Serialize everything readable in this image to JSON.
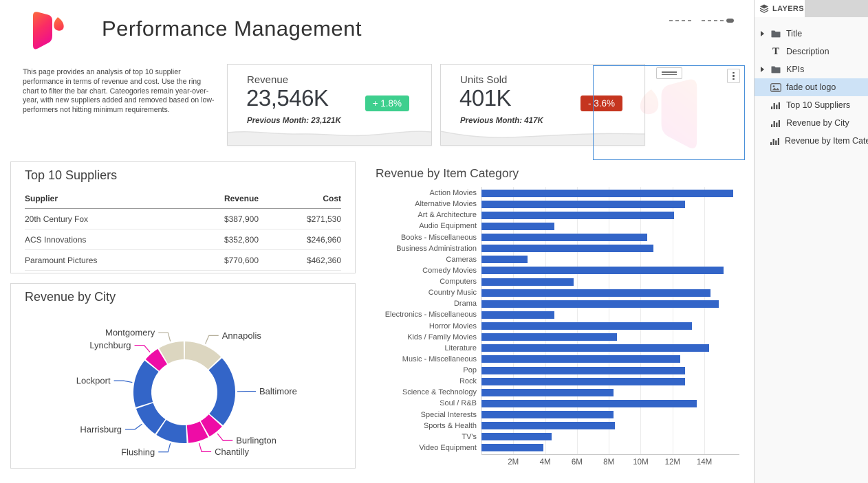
{
  "header": {
    "title": "Performance Management"
  },
  "description": "This page provides an analysis of top 10 supplier performance in terms of revenue and cost. Use the ring chart to filter the bar chart. Cateogories remain year-over-year, with new suppliers added and removed based on low-performers not hitting minimum requirements.",
  "kpis": [
    {
      "title": "Revenue",
      "value": "23,546K",
      "delta": "+ 1.8%",
      "delta_dir": "up",
      "delta_color": "#3ecf8e",
      "previous": "Previous Month: 23,121K"
    },
    {
      "title": "Units Sold",
      "value": "401K",
      "delta": "- 3.6%",
      "delta_dir": "down",
      "delta_color": "#c5351f",
      "previous": "Previous Month: 417K"
    }
  ],
  "suppliers_table": {
    "title": "Top 10 Suppliers",
    "columns": [
      "Supplier",
      "Revenue",
      "Cost"
    ],
    "rows": [
      [
        "20th Century Fox",
        "$387,900",
        "$271,530"
      ],
      [
        "ACS Innovations",
        "$352,800",
        "$246,960"
      ],
      [
        "Paramount Pictures",
        "$770,600",
        "$462,360"
      ]
    ]
  },
  "chart_data": [
    {
      "type": "pie",
      "title": "Revenue by City",
      "subtype": "ring",
      "labels": [
        "Annapolis",
        "Baltimore",
        "Burlington",
        "Chantilly",
        "Flushing",
        "Harrisburg",
        "Lockport",
        "Lynchburg",
        "Montgomery"
      ],
      "values": [
        13,
        23.5,
        5.5,
        7,
        10.5,
        10.5,
        16,
        5.5,
        8.5
      ],
      "values_unit": "percent-share (estimated, no numeric labels shown)",
      "colors": [
        "#dcd6c0",
        "#3365c8",
        "#ee0ca6",
        "#ee0ca6",
        "#3365c8",
        "#3365c8",
        "#3365c8",
        "#ee0ca6",
        "#dcd6c0"
      ],
      "legend_position": "outside-leader-lines"
    },
    {
      "type": "bar",
      "title": "Revenue by Item Category",
      "orientation": "horizontal",
      "categories": [
        "Action Movies",
        "Alternative Movies",
        "Art & Architecture",
        "Audio Equipment",
        "Books - Miscellaneous",
        "Business Administration",
        "Cameras",
        "Comedy Movies",
        "Computers",
        "Country Music",
        "Drama",
        "Electronics - Miscellaneous",
        "Horror Movies",
        "Kids / Family Movies",
        "Literature",
        "Music - Miscellaneous",
        "Pop",
        "Rock",
        "Science & Technology",
        "Soul / R&B",
        "Special Interests",
        "Sports & Health",
        "TV's",
        "Video Equipment"
      ],
      "values": [
        15.8,
        12.8,
        12.1,
        4.6,
        10.4,
        10.8,
        2.9,
        15.2,
        5.8,
        14.4,
        14.9,
        4.6,
        13.2,
        8.5,
        14.3,
        12.5,
        12.8,
        12.8,
        8.3,
        13.5,
        8.3,
        8.4,
        4.4,
        3.9
      ],
      "values_unit": "M",
      "xlim": [
        0,
        16.2
      ],
      "xticks": [
        2,
        4,
        6,
        8,
        10,
        12,
        14
      ],
      "xtick_labels": [
        "2M",
        "4M",
        "6M",
        "8M",
        "10M",
        "12M",
        "14M"
      ],
      "bar_color": "#3365c8",
      "grid": "vertical"
    }
  ],
  "selected_element": {
    "label": "fade out logo"
  },
  "layers_panel": {
    "header": "LAYERS",
    "items": [
      {
        "label": "Title",
        "icon": "folder-icon",
        "expandable": true,
        "selected": false
      },
      {
        "label": "Description",
        "icon": "text-icon",
        "expandable": false,
        "selected": false
      },
      {
        "label": "KPIs",
        "icon": "folder-icon",
        "expandable": true,
        "selected": false
      },
      {
        "label": "fade out logo",
        "icon": "image-icon",
        "expandable": false,
        "selected": true
      },
      {
        "label": "Top 10 Suppliers",
        "icon": "bar-chart-icon",
        "expandable": false,
        "selected": false
      },
      {
        "label": "Revenue by City",
        "icon": "bar-chart-icon",
        "expandable": false,
        "selected": false
      },
      {
        "label": "Revenue by Item Catego",
        "icon": "bar-chart-icon",
        "expandable": false,
        "selected": false
      }
    ]
  },
  "colors": {
    "bar_blue": "#3365c8",
    "magenta": "#ee0ca6",
    "beige": "#dcd6c0",
    "selection_blue": "#4a90d9",
    "selected_row_bg": "#cde2f6",
    "badge_green": "#3ecf8e",
    "badge_red": "#c5351f"
  }
}
